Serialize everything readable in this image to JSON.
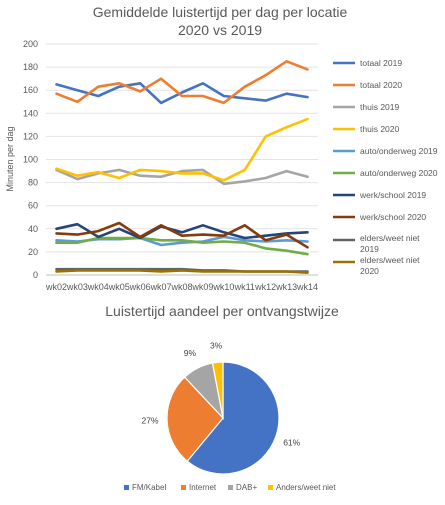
{
  "chart_data": [
    {
      "type": "line",
      "title": "Gemiddelde luistertijd per dag per locatie",
      "subtitle": "2020 vs 2019",
      "ylabel": "Minuten per dag",
      "xlabel": "",
      "ylim": [
        0,
        200
      ],
      "yticks": [
        0,
        20,
        40,
        60,
        80,
        100,
        120,
        140,
        160,
        180,
        200
      ],
      "grid": true,
      "legend": "right",
      "categories": [
        "wk02",
        "wk03",
        "wk04",
        "wk05",
        "wk06",
        "wk07",
        "wk08",
        "wk09",
        "wk10",
        "wk11",
        "wk12",
        "wk13",
        "wk14"
      ],
      "series": [
        {
          "name": "totaal 2019",
          "color": "#4472C4",
          "values": [
            165,
            160,
            155,
            163,
            166,
            149,
            158,
            166,
            155,
            153,
            151,
            157,
            154
          ]
        },
        {
          "name": "totaal 2020",
          "color": "#ED7D31",
          "values": [
            157,
            150,
            163,
            166,
            159,
            170,
            155,
            155,
            149,
            163,
            173,
            185,
            178
          ]
        },
        {
          "name": "thuis 2019",
          "color": "#A5A5A5",
          "values": [
            91,
            83,
            88,
            91,
            86,
            85,
            90,
            91,
            79,
            81,
            84,
            90,
            85
          ]
        },
        {
          "name": "thuis 2020",
          "color": "#FFC000",
          "values": [
            92,
            86,
            89,
            84,
            91,
            90,
            88,
            88,
            82,
            91,
            120,
            128,
            135
          ]
        },
        {
          "name": "auto/onderweg 2019",
          "color": "#5B9BD5",
          "values": [
            30,
            29,
            31,
            31,
            32,
            26,
            28,
            29,
            33,
            30,
            29,
            30,
            29
          ]
        },
        {
          "name": "auto/onderweg 2020",
          "color": "#70AD47",
          "values": [
            28,
            28,
            32,
            32,
            32,
            30,
            30,
            28,
            29,
            28,
            23,
            21,
            18
          ]
        },
        {
          "name": "werk/school 2019",
          "color": "#264478",
          "values": [
            40,
            44,
            33,
            40,
            32,
            42,
            37,
            43,
            37,
            32,
            34,
            36,
            37
          ]
        },
        {
          "name": "werk/school 2020",
          "color": "#843C0C",
          "values": [
            36,
            35,
            38,
            45,
            33,
            43,
            34,
            35,
            34,
            43,
            30,
            35,
            24
          ]
        },
        {
          "name": "elders/weet niet 2019",
          "color": "#636363",
          "values": [
            5,
            5,
            5,
            5,
            5,
            5,
            5,
            4,
            4,
            3,
            3,
            3,
            3
          ]
        },
        {
          "name": "elders/weet niet 2020",
          "color": "#997300",
          "values": [
            3,
            4,
            4,
            4,
            4,
            3,
            4,
            3,
            3,
            3,
            3,
            3,
            2
          ]
        }
      ]
    },
    {
      "type": "pie",
      "title": "Luistertijd aandeel per ontvangstwijze",
      "legend": "bottom",
      "categories": [
        "FM/Kabel",
        "Internet",
        "DAB+",
        "Anders/weet niet"
      ],
      "values": [
        61,
        27,
        9,
        3
      ],
      "labels": [
        "61%",
        "27%",
        "9%",
        "3%"
      ],
      "colors": [
        "#4472C4",
        "#ED7D31",
        "#A5A5A5",
        "#FFC000"
      ]
    }
  ]
}
